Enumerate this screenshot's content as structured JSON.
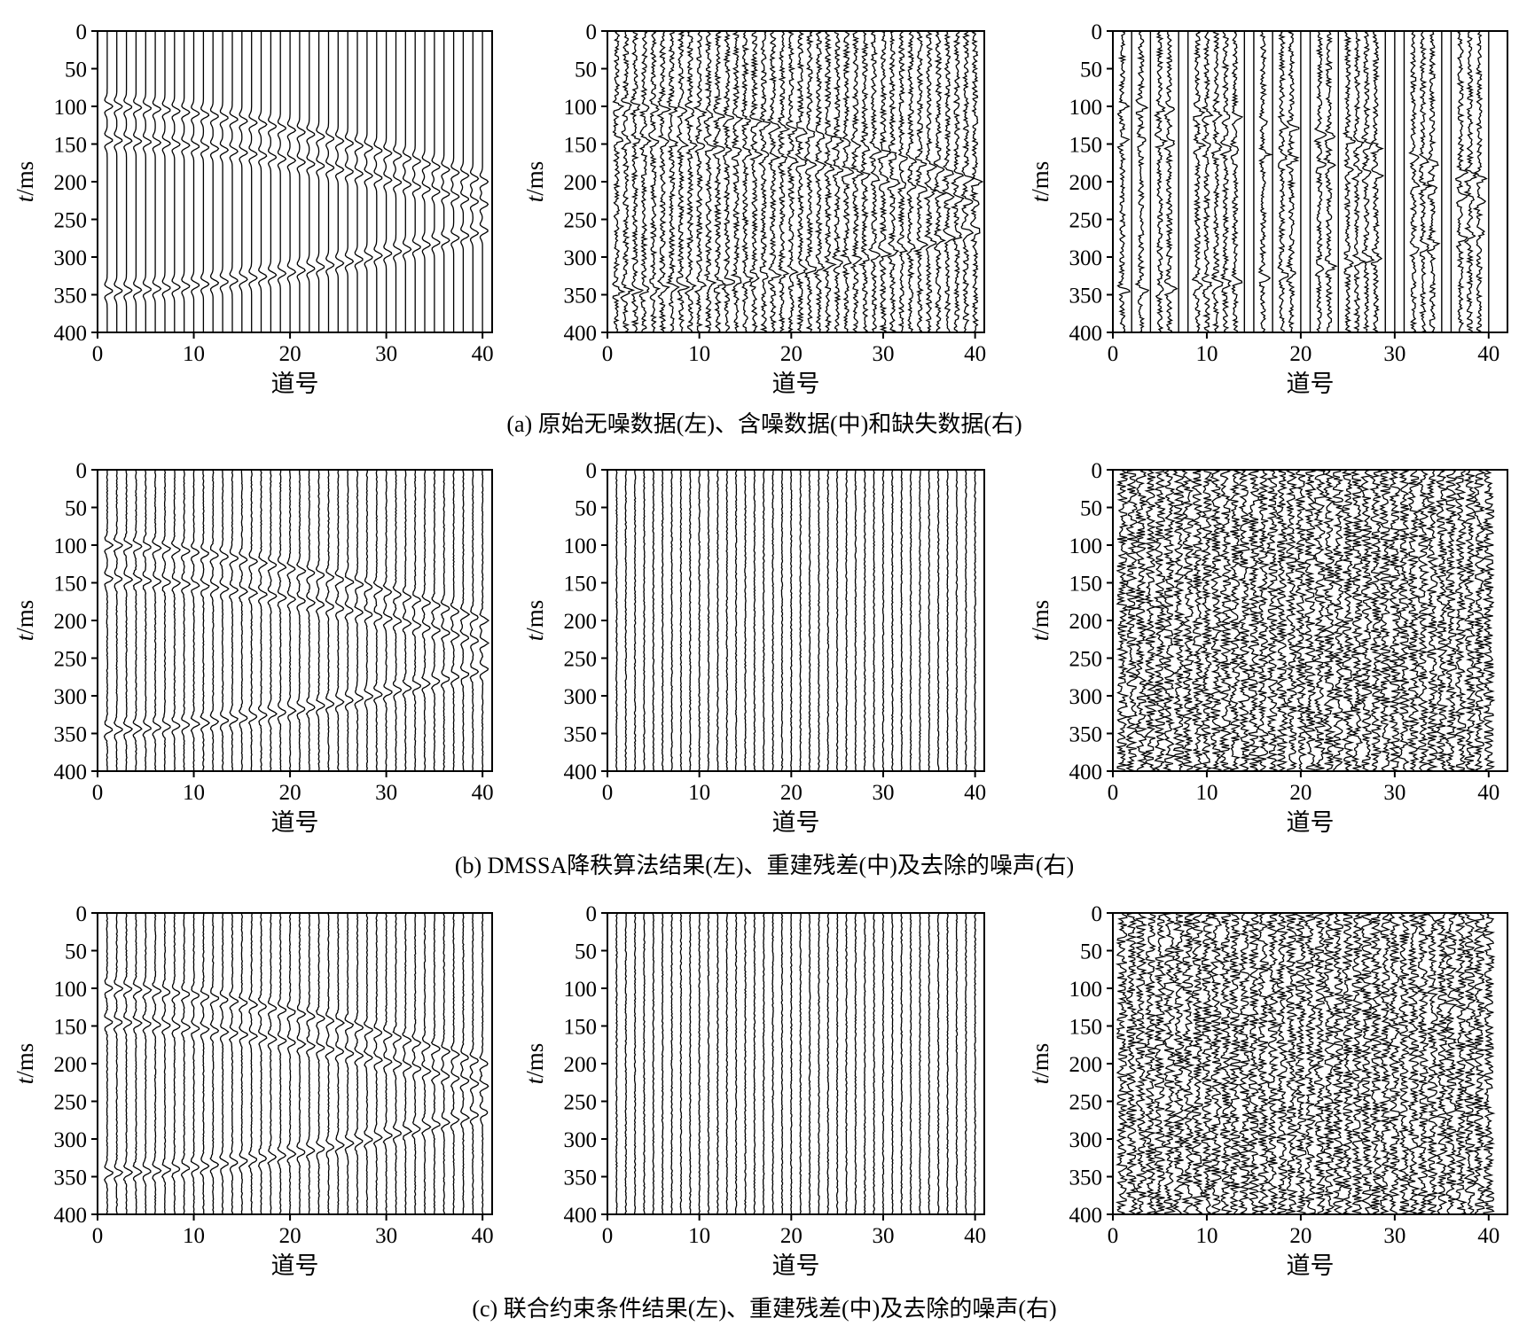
{
  "figure": {
    "rows": [
      {
        "caption": "(a) 原始无噪数据(左)、含噪数据(中)和缺失数据(右)"
      },
      {
        "caption": "(b) DMSSA降秩算法结果(左)、重建残差(中)及去除的噪声(右)"
      },
      {
        "caption": "(c) 联合约束条件结果(左)、重建残差(中)及去除的噪声(右)"
      }
    ]
  },
  "chart_data": [
    {
      "panel": "a-left",
      "type": "seismic-wiggle",
      "xlabel": "道号",
      "ylabel_italic": "t",
      "ylabel_unit": "/ms",
      "xlim": [
        0,
        41
      ],
      "ylim": [
        0,
        400
      ],
      "xticks": [
        0,
        10,
        20,
        30,
        40
      ],
      "yticks": [
        0,
        50,
        100,
        150,
        200,
        250,
        300,
        350,
        400
      ],
      "traces": 40,
      "events": [
        {
          "t0": 100,
          "t_end": 200,
          "curve": "hyperbola"
        },
        {
          "t0": 145,
          "t_end": 230,
          "curve": "hyperbola"
        },
        {
          "t0": 345,
          "t_end": 265,
          "curve": "hyperbola-up"
        }
      ],
      "noise": "none",
      "missing_traces": []
    },
    {
      "panel": "a-middle",
      "type": "seismic-wiggle",
      "xlabel": "道号",
      "ylabel_italic": "t",
      "ylabel_unit": "/ms",
      "xlim": [
        0,
        41
      ],
      "ylim": [
        0,
        400
      ],
      "xticks": [
        0,
        10,
        20,
        30,
        40
      ],
      "yticks": [
        0,
        50,
        100,
        150,
        200,
        250,
        300,
        350,
        400
      ],
      "traces": 40,
      "events": [
        {
          "t0": 100,
          "t_end": 200,
          "curve": "hyperbola"
        },
        {
          "t0": 145,
          "t_end": 230,
          "curve": "hyperbola"
        },
        {
          "t0": 345,
          "t_end": 265,
          "curve": "hyperbola-up"
        }
      ],
      "noise": "random",
      "missing_traces": []
    },
    {
      "panel": "a-right",
      "type": "seismic-wiggle",
      "xlabel": "道号",
      "ylabel_italic": "t",
      "ylabel_unit": "/ms",
      "xlim": [
        0,
        42
      ],
      "ylim": [
        0,
        400
      ],
      "xticks": [
        0,
        10,
        20,
        30,
        40
      ],
      "yticks": [
        0,
        50,
        100,
        150,
        200,
        250,
        300,
        350,
        400
      ],
      "traces": 40,
      "events": [
        {
          "t0": 100,
          "t_end": 200,
          "curve": "hyperbola"
        },
        {
          "t0": 145,
          "t_end": 230,
          "curve": "hyperbola"
        },
        {
          "t0": 345,
          "t_end": 265,
          "curve": "hyperbola-up"
        }
      ],
      "noise": "random",
      "missing_traces": [
        2,
        4,
        7,
        8,
        14,
        15,
        17,
        20,
        21,
        24,
        29,
        30,
        31,
        35,
        36,
        40
      ]
    },
    {
      "panel": "b-left",
      "type": "seismic-wiggle",
      "xlabel": "道号",
      "ylabel_italic": "t",
      "ylabel_unit": "/ms",
      "xlim": [
        0,
        41
      ],
      "ylim": [
        0,
        400
      ],
      "xticks": [
        0,
        10,
        20,
        30,
        40
      ],
      "yticks": [
        0,
        50,
        100,
        150,
        200,
        250,
        300,
        350,
        400
      ],
      "traces": 40,
      "events": [
        {
          "t0": 100,
          "t_end": 200,
          "curve": "hyperbola"
        },
        {
          "t0": 145,
          "t_end": 230,
          "curve": "hyperbola"
        },
        {
          "t0": 345,
          "t_end": 265,
          "curve": "hyperbola-up"
        }
      ],
      "noise": "weak",
      "missing_traces": []
    },
    {
      "panel": "b-middle",
      "type": "seismic-wiggle",
      "xlabel": "道号",
      "ylabel_italic": "t",
      "ylabel_unit": "/ms",
      "xlim": [
        0,
        41
      ],
      "ylim": [
        0,
        400
      ],
      "xticks": [
        0,
        10,
        20,
        30,
        40
      ],
      "yticks": [
        0,
        50,
        100,
        150,
        200,
        250,
        300,
        350,
        400
      ],
      "traces": 40,
      "events": [],
      "noise": "residual",
      "missing_traces": []
    },
    {
      "panel": "b-right",
      "type": "seismic-wiggle",
      "xlabel": "道号",
      "ylabel_italic": "t",
      "ylabel_unit": "/ms",
      "xlim": [
        0,
        42
      ],
      "ylim": [
        0,
        400
      ],
      "xticks": [
        0,
        10,
        20,
        30,
        40
      ],
      "yticks": [
        0,
        50,
        100,
        150,
        200,
        250,
        300,
        350,
        400
      ],
      "traces": 40,
      "events": [],
      "noise": "strong",
      "missing_traces": []
    },
    {
      "panel": "c-left",
      "type": "seismic-wiggle",
      "xlabel": "道号",
      "ylabel_italic": "t",
      "ylabel_unit": "/ms",
      "xlim": [
        0,
        41
      ],
      "ylim": [
        0,
        400
      ],
      "xticks": [
        0,
        10,
        20,
        30,
        40
      ],
      "yticks": [
        0,
        50,
        100,
        150,
        200,
        250,
        300,
        350,
        400
      ],
      "traces": 40,
      "events": [
        {
          "t0": 100,
          "t_end": 200,
          "curve": "hyperbola"
        },
        {
          "t0": 145,
          "t_end": 230,
          "curve": "hyperbola"
        },
        {
          "t0": 345,
          "t_end": 265,
          "curve": "hyperbola-up"
        }
      ],
      "noise": "weak",
      "missing_traces": []
    },
    {
      "panel": "c-middle",
      "type": "seismic-wiggle",
      "xlabel": "道号",
      "ylabel_italic": "t",
      "ylabel_unit": "/ms",
      "xlim": [
        0,
        41
      ],
      "ylim": [
        0,
        400
      ],
      "xticks": [
        0,
        10,
        20,
        30,
        40
      ],
      "yticks": [
        0,
        50,
        100,
        150,
        200,
        250,
        300,
        350,
        400
      ],
      "traces": 40,
      "events": [],
      "noise": "residual",
      "missing_traces": []
    },
    {
      "panel": "c-right",
      "type": "seismic-wiggle",
      "xlabel": "道号",
      "ylabel_italic": "t",
      "ylabel_unit": "/ms",
      "xlim": [
        0,
        42
      ],
      "ylim": [
        0,
        400
      ],
      "xticks": [
        0,
        10,
        20,
        30,
        40
      ],
      "yticks": [
        0,
        50,
        100,
        150,
        200,
        250,
        300,
        350,
        400
      ],
      "traces": 40,
      "events": [],
      "noise": "strong",
      "missing_traces": []
    }
  ]
}
